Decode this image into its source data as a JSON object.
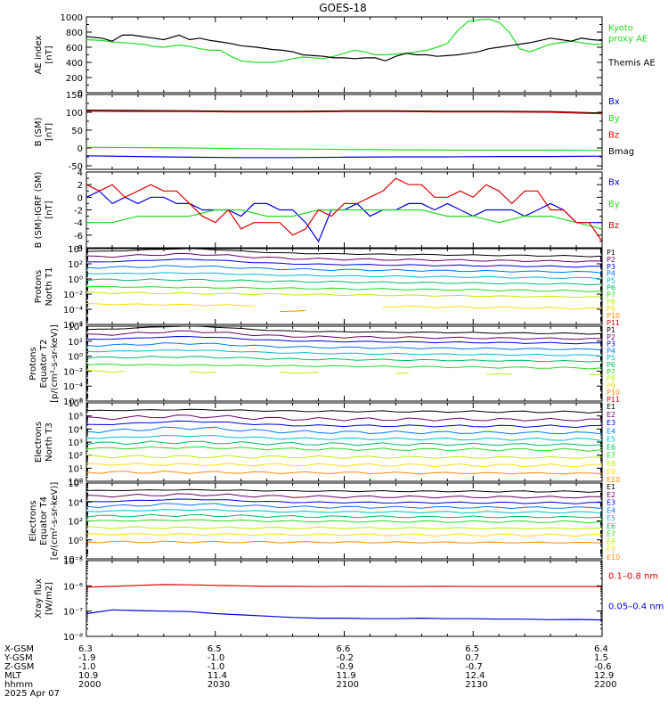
{
  "title": "GOES-18",
  "colors": {
    "black": "#000000",
    "red": "#dd0000",
    "green": "#22dd22",
    "blue": "#0000dd",
    "chan": [
      "#000000",
      "#6a006a",
      "#0000dd",
      "#0077ff",
      "#00bbcc",
      "#00bb66",
      "#22dd22",
      "#bbee00",
      "#ffdd00",
      "#ff8800",
      "#dd0000"
    ]
  },
  "x_ticks": [
    {
      "hhmm": "2000",
      "xgsm": "6.3",
      "ygsm": "-1.9",
      "zgsm": "-1.0",
      "mlt": "10.9"
    },
    {
      "hhmm": "2030",
      "xgsm": "6.5",
      "ygsm": "-1.0",
      "zgsm": "-1.0",
      "mlt": "11.4"
    },
    {
      "hhmm": "2100",
      "xgsm": "6.6",
      "ygsm": "-0.2",
      "zgsm": "-0.9",
      "mlt": "11.9"
    },
    {
      "hhmm": "2130",
      "xgsm": "6.5",
      "ygsm": "0.7",
      "zgsm": "-0.7",
      "mlt": "12.4"
    },
    {
      "hhmm": "2200",
      "xgsm": "6.4",
      "ygsm": "1.5",
      "zgsm": "-0.6",
      "mlt": "12.9"
    }
  ],
  "footer": {
    "row_labels": [
      "X-GSM",
      "Y-GSM",
      "Z-GSM",
      "MLT",
      "hhmm"
    ],
    "date": "2025 Apr 07"
  },
  "chart_data": [
    {
      "type": "line",
      "ylabel": "AE index\n[nT]",
      "ylim": [
        0,
        1000
      ],
      "yticks": [
        "0",
        "200",
        "400",
        "600",
        "800",
        "1000"
      ],
      "yticks_minor": [
        100,
        300,
        500,
        700,
        900
      ],
      "legend": [
        {
          "text": "Kyoto\nproxy AE",
          "color": "#22dd22"
        },
        {
          "text": "Themis AE",
          "color": "#000000"
        }
      ],
      "series": [
        {
          "name": "Kyoto proxy AE",
          "color": "#22dd22",
          "x": [
            0,
            6,
            10,
            14,
            18,
            22,
            26,
            30,
            36,
            40,
            44,
            48,
            52,
            56,
            60,
            66,
            72,
            76,
            80,
            84,
            88,
            92,
            96,
            100,
            104,
            108,
            112,
            116,
            120,
            124,
            128,
            132,
            136,
            140,
            144,
            148,
            152,
            156,
            160,
            164,
            168,
            172,
            176,
            180,
            184,
            188,
            192,
            196,
            200
          ],
          "y": [
            700,
            690,
            670,
            660,
            650,
            640,
            610,
            600,
            630,
            610,
            580,
            560,
            560,
            480,
            420,
            400,
            400,
            420,
            450,
            470,
            460,
            450,
            480,
            520,
            560,
            540,
            500,
            500,
            510,
            520,
            540,
            560,
            600,
            650,
            820,
            940,
            960,
            970,
            930,
            800,
            580,
            540,
            590,
            640,
            660,
            680,
            660,
            640,
            640
          ]
        },
        {
          "name": "Themis AE",
          "color": "#000000",
          "x": [
            0,
            6,
            10,
            14,
            18,
            22,
            26,
            30,
            36,
            40,
            44,
            48,
            52,
            56,
            60,
            66,
            72,
            76,
            80,
            84,
            88,
            92,
            96,
            100,
            104,
            108,
            112,
            116,
            120,
            124,
            128,
            132,
            136,
            140,
            144,
            148,
            152,
            156,
            160,
            164,
            168,
            172,
            176,
            180,
            184,
            188,
            192,
            196,
            200
          ],
          "y": [
            740,
            720,
            680,
            760,
            760,
            740,
            720,
            700,
            760,
            700,
            720,
            690,
            670,
            650,
            620,
            600,
            570,
            560,
            540,
            500,
            490,
            480,
            460,
            460,
            450,
            460,
            460,
            420,
            480,
            520,
            500,
            500,
            480,
            490,
            500,
            520,
            540,
            580,
            600,
            620,
            640,
            660,
            690,
            720,
            700,
            680,
            720,
            700,
            690
          ]
        }
      ]
    },
    {
      "type": "line",
      "ylabel": "B (SM)\n[nT]",
      "ylim": [
        -60,
        150
      ],
      "yticks": [
        "-50",
        "0",
        "50",
        "100",
        "150"
      ],
      "yticks_minor": [
        -25,
        25,
        75,
        125
      ],
      "legend": [
        {
          "text": "Bx",
          "color": "#0000dd"
        },
        {
          "text": "By",
          "color": "#22dd22"
        },
        {
          "text": "Bz",
          "color": "#dd0000"
        },
        {
          "text": "Bmag",
          "color": "#000000"
        }
      ],
      "series": [
        {
          "name": "Bmag",
          "color": "#000000",
          "x": [
            0,
            20,
            40,
            60,
            80,
            100,
            120,
            140,
            160,
            180,
            200
          ],
          "y": [
            106,
            105,
            104,
            103,
            103,
            104,
            104,
            103,
            103,
            102,
            98
          ]
        },
        {
          "name": "Bz",
          "color": "#dd0000",
          "x": [
            0,
            20,
            40,
            60,
            80,
            100,
            120,
            140,
            160,
            180,
            200
          ],
          "y": [
            103,
            102,
            102,
            101,
            101,
            102,
            102,
            101,
            101,
            100,
            96
          ]
        },
        {
          "name": "By",
          "color": "#22dd22",
          "x": [
            0,
            20,
            40,
            60,
            80,
            100,
            120,
            140,
            160,
            180,
            200
          ],
          "y": [
            2,
            1,
            0,
            -2,
            -3,
            -4,
            -5,
            -6,
            -6,
            -6,
            -7
          ]
        },
        {
          "name": "Bx",
          "color": "#0000dd",
          "x": [
            0,
            20,
            40,
            60,
            80,
            100,
            120,
            140,
            160,
            180,
            200
          ],
          "y": [
            -22,
            -24,
            -26,
            -27,
            -27,
            -26,
            -25,
            -25,
            -24,
            -24,
            -23
          ]
        }
      ]
    },
    {
      "type": "line",
      "ylabel": "B (SM)-IGRF (SM)\n[nT]",
      "ylim": [
        -8,
        4
      ],
      "yticks": [
        "-8",
        "-6",
        "-4",
        "-2",
        "0",
        "2",
        "4"
      ],
      "yticks_minor": [
        -7,
        -5,
        -3,
        -1,
        1,
        3
      ],
      "legend": [
        {
          "text": "Bx",
          "color": "#0000dd"
        },
        {
          "text": "By",
          "color": "#22dd22"
        },
        {
          "text": "Bz",
          "color": "#dd0000"
        }
      ],
      "series": [
        {
          "name": "Bx",
          "color": "#0000dd",
          "x": [
            0,
            5,
            10,
            15,
            20,
            25,
            30,
            35,
            40,
            45,
            50,
            55,
            60,
            65,
            70,
            75,
            80,
            85,
            90,
            95,
            100,
            105,
            110,
            115,
            120,
            125,
            130,
            135,
            140,
            145,
            150,
            155,
            160,
            165,
            170,
            175,
            180,
            185,
            190,
            195,
            200
          ],
          "y": [
            0,
            1,
            -1,
            0,
            -1,
            0,
            0,
            -1,
            -1,
            -2,
            -2,
            -2,
            -3,
            -1,
            -1,
            -2,
            -2,
            -4,
            -7,
            -2,
            -2,
            -1,
            -3,
            -2,
            -2,
            -1,
            -1,
            -2,
            -1,
            -2,
            -3,
            -2,
            -2,
            -2,
            -3,
            -2,
            -1,
            -2,
            -4,
            -4,
            -4
          ]
        },
        {
          "name": "By",
          "color": "#22dd22",
          "x": [
            0,
            10,
            20,
            30,
            40,
            50,
            60,
            70,
            80,
            90,
            100,
            110,
            120,
            130,
            140,
            150,
            160,
            170,
            180,
            190,
            200
          ],
          "y": [
            -4,
            -4,
            -3,
            -3,
            -3,
            -2,
            -2,
            -3,
            -3,
            -2,
            -2,
            -2,
            -2,
            -2,
            -3,
            -3,
            -4,
            -3,
            -3,
            -4,
            -5
          ]
        },
        {
          "name": "Bz",
          "color": "#dd0000",
          "x": [
            0,
            5,
            10,
            15,
            20,
            25,
            30,
            35,
            40,
            45,
            50,
            55,
            60,
            65,
            70,
            75,
            80,
            85,
            90,
            95,
            100,
            105,
            110,
            115,
            120,
            125,
            130,
            135,
            140,
            145,
            150,
            155,
            160,
            165,
            170,
            175,
            180,
            185,
            190,
            195,
            200
          ],
          "y": [
            2,
            1,
            2,
            0,
            1,
            2,
            1,
            1,
            -1,
            -3,
            -4,
            -2,
            -5,
            -4,
            -4,
            -4,
            -6,
            -5,
            -2,
            -3,
            -1,
            -1,
            0,
            1,
            3,
            2,
            2,
            0,
            0,
            1,
            0,
            2,
            1,
            -1,
            1,
            1,
            -2,
            -2,
            -4,
            -4,
            -7
          ]
        }
      ]
    },
    {
      "type": "line",
      "ylog": true,
      "ylabel": "Protons\nNorth T1",
      "ylim": [
        -6,
        4
      ],
      "yticks": [
        "10⁻⁶",
        "10⁻⁴",
        "10⁻²",
        "10⁰",
        "10²",
        "10⁴"
      ],
      "legend": [
        {
          "text": "P1"
        },
        {
          "text": "P2"
        },
        {
          "text": "P3"
        },
        {
          "text": "P4"
        },
        {
          "text": "P5"
        },
        {
          "text": "P6"
        },
        {
          "text": "P7"
        },
        {
          "text": "P8"
        },
        {
          "text": "P9"
        },
        {
          "text": "P10"
        },
        {
          "text": "P11"
        }
      ],
      "base_levels": [
        3.6,
        2.9,
        2.2,
        1.5,
        0.7,
        -0.1,
        -1.0,
        -1.8,
        -3.3,
        -4.0,
        -4.6
      ],
      "bump": [
        0.5,
        0.5,
        0.5,
        0.3,
        0.2,
        0.1,
        0,
        0,
        0,
        0,
        0
      ],
      "trend": -0.6,
      "gaps": [
        [],
        [],
        [],
        [],
        [],
        [],
        [],
        [],
        [
          [
            70,
            110
          ]
        ],
        [
          [
            0,
            70
          ],
          [
            90,
            200
          ]
        ],
        [
          [
            0,
            200
          ]
        ]
      ]
    },
    {
      "type": "line",
      "ylog": true,
      "ylabel": "Protons\nEquator T2\n[p/(cm²-s-sr-keV)]",
      "ylim": [
        -6,
        4
      ],
      "yticks": [
        "10⁻⁶",
        "10⁻⁴",
        "10⁻²",
        "10⁰",
        "10²",
        "10⁴"
      ],
      "legend": [
        {
          "text": "P1"
        },
        {
          "text": "P2"
        },
        {
          "text": "P3"
        },
        {
          "text": "P4"
        },
        {
          "text": "P5"
        },
        {
          "text": "P6"
        },
        {
          "text": "P7"
        },
        {
          "text": "P8"
        },
        {
          "text": "P9"
        },
        {
          "text": "P10"
        },
        {
          "text": "P11"
        }
      ],
      "base_levels": [
        3.5,
        2.8,
        2.2,
        1.4,
        0.6,
        -0.2,
        -1.1,
        -2.0,
        -3.6,
        -4.3,
        -5.0
      ],
      "bump": [
        0.6,
        0.6,
        0.5,
        0.4,
        0.3,
        0.2,
        0,
        0,
        0,
        0,
        0
      ],
      "trend": -0.5,
      "gaps": [
        [],
        [],
        [],
        [],
        [],
        [],
        [],
        [
          [
            20,
            35
          ],
          [
            55,
            70
          ],
          [
            95,
            115
          ],
          [
            130,
            150
          ],
          [
            170,
            190
          ]
        ],
        [
          [
            0,
            200
          ]
        ],
        [
          [
            0,
            200
          ]
        ],
        [
          [
            0,
            200
          ]
        ]
      ]
    },
    {
      "type": "line",
      "ylog": true,
      "ylabel": "Electrons\nNorth T3",
      "ylim": [
        0,
        6
      ],
      "yticks": [
        "10⁰",
        "10¹",
        "10²",
        "10³",
        "10⁴",
        "10⁵",
        "10⁶"
      ],
      "legend": [
        {
          "text": "E1"
        },
        {
          "text": "E2"
        },
        {
          "text": "E3"
        },
        {
          "text": "E4"
        },
        {
          "text": "E5"
        },
        {
          "text": "E6"
        },
        {
          "text": "E7"
        },
        {
          "text": "E8"
        },
        {
          "text": "E9"
        },
        {
          "text": "E10"
        }
      ],
      "base_levels": [
        5.4,
        4.8,
        4.3,
        3.8,
        3.3,
        2.9,
        2.5,
        1.9,
        1.3,
        0.7
      ],
      "bump": [
        0.1,
        0.2,
        0.3,
        0.3,
        0.2,
        0.1,
        0.1,
        0,
        0,
        0
      ],
      "trend": -0.1,
      "gaps": [
        [],
        [],
        [],
        [],
        [],
        [],
        [],
        [],
        [],
        []
      ]
    },
    {
      "type": "line",
      "ylog": true,
      "ylabel": "Electrons\nEquator T4\n[e/(cm²-s-sr-keV)]",
      "ylim": [
        -2,
        6
      ],
      "yticks": [
        "10⁻²",
        "10⁰",
        "10²",
        "10⁴",
        "10⁶"
      ],
      "legend": [
        {
          "text": "E1"
        },
        {
          "text": "E2"
        },
        {
          "text": "E3"
        },
        {
          "text": "E4"
        },
        {
          "text": "E5"
        },
        {
          "text": "E6"
        },
        {
          "text": "E7"
        },
        {
          "text": "E8"
        },
        {
          "text": "E9"
        },
        {
          "text": "E10"
        }
      ],
      "base_levels": [
        5.2,
        4.6,
        4.0,
        3.5,
        3.0,
        2.5,
        2.0,
        1.3,
        0.6,
        -0.2
      ],
      "bump": [
        0.1,
        0.2,
        0.3,
        0.3,
        0.2,
        0.1,
        0.1,
        0,
        0,
        0
      ],
      "trend": -0.1,
      "gaps": [
        [],
        [],
        [],
        [],
        [],
        [],
        [],
        [],
        [],
        []
      ]
    },
    {
      "type": "line",
      "ylog": true,
      "ylabel": "Xray flux\n[W/m2]",
      "ylim": [
        -8,
        -5
      ],
      "yticks": [
        "10⁻⁸",
        "10⁻⁷",
        "10⁻⁶",
        "10⁻⁵"
      ],
      "legend": [
        {
          "text": "0.1–0.8 nm",
          "color": "#dd0000"
        },
        {
          "text": "0.05–0.4 nm",
          "color": "#0000dd"
        }
      ],
      "series": [
        {
          "name": "0.1–0.8 nm",
          "color": "#dd0000",
          "x": [
            0,
            10,
            20,
            30,
            40,
            50,
            60,
            70,
            80,
            90,
            100,
            120,
            140,
            160,
            180,
            200
          ],
          "y": [
            -6.05,
            -6.02,
            -5.98,
            -5.95,
            -5.96,
            -5.98,
            -6.0,
            -6.02,
            -6.02,
            -6.03,
            -6.02,
            -6.03,
            -6.02,
            -6.03,
            -6.03,
            -6.03
          ]
        },
        {
          "name": "0.05–0.4 nm",
          "color": "#0000dd",
          "x": [
            0,
            10,
            20,
            30,
            40,
            50,
            60,
            70,
            80,
            90,
            100,
            110,
            120,
            130,
            140,
            150,
            160,
            170,
            180,
            190,
            200
          ],
          "y": [
            -7.1,
            -6.95,
            -6.98,
            -7.0,
            -7.02,
            -7.1,
            -7.15,
            -7.2,
            -7.25,
            -7.28,
            -7.28,
            -7.3,
            -7.3,
            -7.28,
            -7.3,
            -7.3,
            -7.32,
            -7.32,
            -7.34,
            -7.33,
            -7.35
          ]
        }
      ]
    }
  ]
}
